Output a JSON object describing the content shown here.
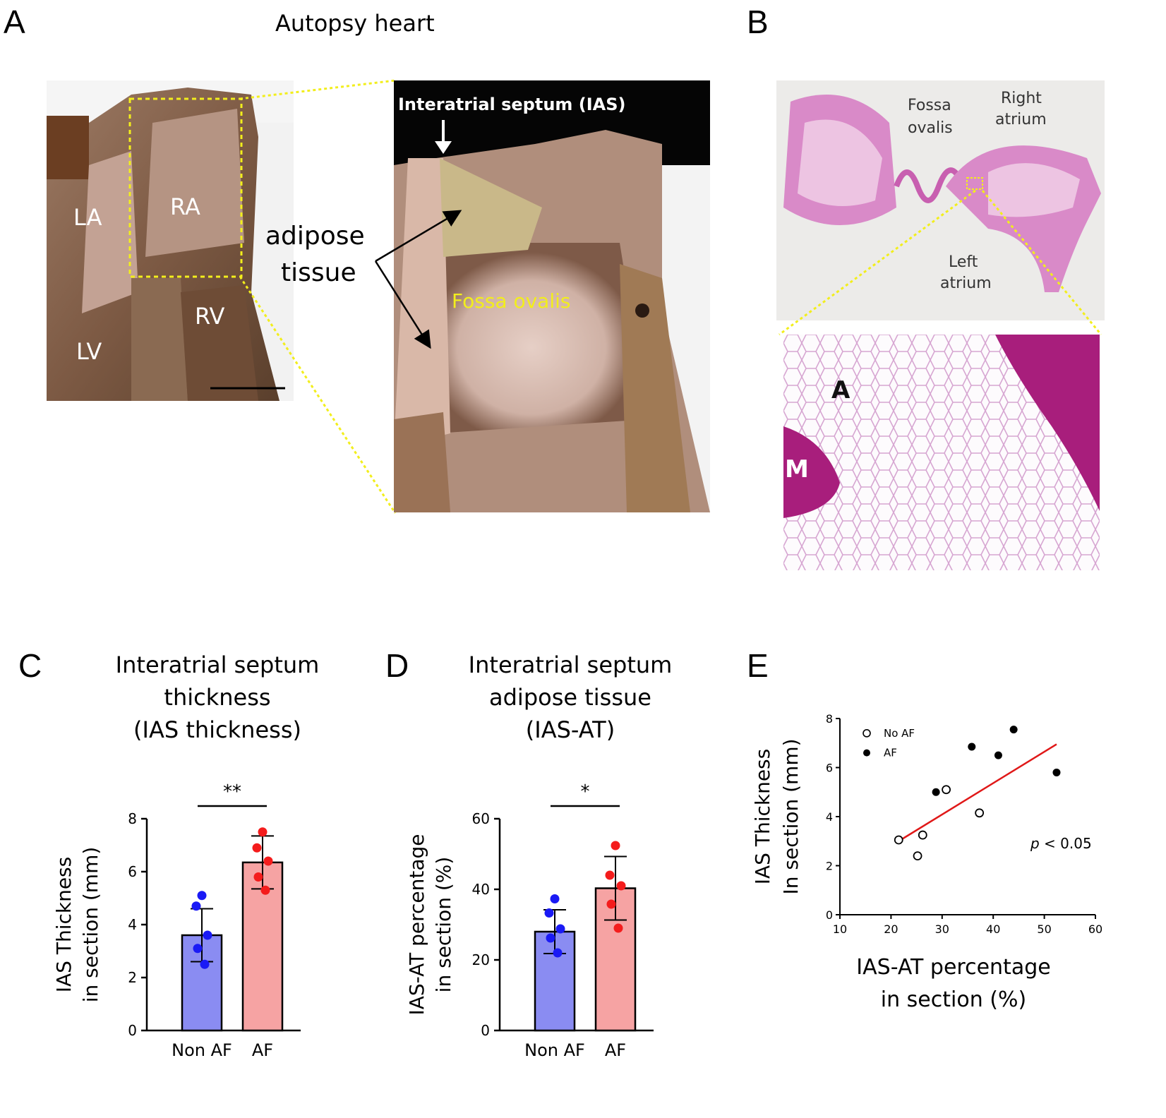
{
  "panels": {
    "A": {
      "letter": "A",
      "title": "Autopsy heart",
      "labels": {
        "la": "LA",
        "ra": "RA",
        "lv": "LV",
        "rv": "RV"
      },
      "adipose_label_line1": "adipose",
      "adipose_label_line2": "tissue",
      "ias_label": "Interatrial septum (IAS)",
      "fossa_label": "Fossa ovalis"
    },
    "B": {
      "letter": "B",
      "fossa_line1": "Fossa",
      "fossa_line2": "ovalis",
      "right_line1": "Right",
      "right_line2": "atrium",
      "left_line1": "Left",
      "left_line2": "atrium",
      "label_a": "A",
      "label_m": "M"
    },
    "C": {
      "letter": "C",
      "title_line1": "Interatrial septum",
      "title_line2": "thickness",
      "title_line3": "(IAS thickness)",
      "ylabel_line1": "IAS Thickness",
      "ylabel_line2": "in section (mm)",
      "significance": "**"
    },
    "D": {
      "letter": "D",
      "title_line1": "Interatrial septum",
      "title_line2": "adipose tissue",
      "title_line3": "(IAS-AT)",
      "ylabel_line1": "IAS-AT percentage",
      "ylabel_line2": "in section (%)",
      "significance": "*"
    },
    "E": {
      "letter": "E",
      "ylabel_line1": "IAS Thickness",
      "ylabel_line2": "In section (mm)",
      "xlabel_line1": "IAS-AT percentage",
      "xlabel_line2": "in section (%)",
      "pvalue_p": "p",
      "pvalue_rest": " < 0.05"
    }
  },
  "chart_data": [
    {
      "id": "C",
      "type": "bar",
      "categories": [
        "Non AF",
        "AF"
      ],
      "values": [
        3.6,
        6.35
      ],
      "sd": [
        1.0,
        1.0
      ],
      "points": [
        [
          5.1,
          4.7,
          3.6,
          3.1,
          2.5
        ],
        [
          7.5,
          6.9,
          6.4,
          5.8,
          5.3
        ]
      ],
      "colors": [
        "#8a8cf2",
        "#f6a3a3"
      ],
      "point_colors": [
        "#1a1af5",
        "#f41c1c"
      ],
      "ylabel": "IAS Thickness in section (mm)",
      "ylim": [
        0,
        8
      ],
      "yticks": [
        0,
        2,
        4,
        6,
        8
      ]
    },
    {
      "id": "D",
      "type": "bar",
      "categories": [
        "Non AF",
        "AF"
      ],
      "values": [
        28,
        40.3
      ],
      "sd": [
        6.2,
        9.0
      ],
      "points": [
        [
          37.3,
          33.3,
          28.8,
          26.2,
          22.0
        ],
        [
          52.4,
          44.0,
          41.0,
          35.8,
          29.0
        ]
      ],
      "colors": [
        "#8a8cf2",
        "#f6a3a3"
      ],
      "point_colors": [
        "#1a1af5",
        "#f41c1c"
      ],
      "ylabel": "IAS-AT percentage in section (%)",
      "ylim": [
        0,
        60
      ],
      "yticks": [
        0,
        20,
        40,
        60
      ]
    },
    {
      "id": "E",
      "type": "scatter",
      "series": [
        {
          "name": "No AF",
          "points": [
            [
              21.5,
              3.05
            ],
            [
              26.2,
              3.25
            ],
            [
              25.2,
              2.4
            ],
            [
              30.8,
              5.1
            ],
            [
              37.3,
              4.15
            ]
          ]
        },
        {
          "name": "AF",
          "points": [
            [
              28.8,
              5.0
            ],
            [
              35.8,
              6.85
            ],
            [
              41.0,
              6.5
            ],
            [
              44.0,
              7.55
            ],
            [
              52.4,
              5.8
            ]
          ]
        }
      ],
      "trendline": [
        [
          21.5,
          3.0
        ],
        [
          52.4,
          6.95
        ]
      ],
      "trendline_color": "#e01818",
      "ylabel": "IAS Thickness In section (mm)",
      "xlabel": "IAS-AT percentage in section (%)",
      "xlim": [
        10,
        60
      ],
      "ylim": [
        0,
        8
      ],
      "xticks": [
        10,
        20,
        30,
        40,
        50,
        60
      ],
      "yticks": [
        0,
        2,
        4,
        6,
        8
      ],
      "legend_position": "top-left"
    }
  ]
}
